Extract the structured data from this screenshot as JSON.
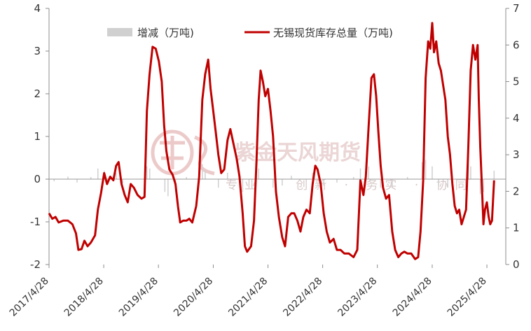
{
  "chart_data": {
    "type": "line",
    "legend": {
      "placement": "top",
      "entries": [
        {
          "key": "change",
          "label": "增减（万吨)",
          "style": "bar",
          "color": "#d0d0d0"
        },
        {
          "key": "inventory",
          "label": "无锡现货库存总量（万吨)",
          "style": "line",
          "color": "#c00000"
        }
      ]
    },
    "x_tick_labels": [
      "2017/4/28",
      "2018/4/28",
      "2019/4/28",
      "2020/4/28",
      "2021/4/28",
      "2022/4/28",
      "2023/4/28",
      "2024/4/28",
      "2025/4/28"
    ],
    "x_range": [
      "2017/4/28",
      "2025/9/1"
    ],
    "y_left": {
      "min": -2,
      "max": 4,
      "ticks": [
        "-2",
        "-1",
        "0",
        "1",
        "2",
        "3",
        "4"
      ],
      "series": "change"
    },
    "y_right": {
      "min": 0,
      "max": 7,
      "ticks": [
        "0",
        "1",
        "2",
        "3",
        "4",
        "5",
        "6",
        "7"
      ],
      "series": "inventory"
    },
    "grid": false,
    "series": [
      {
        "name": "无锡现货库存总量（万吨)",
        "axis": "right",
        "color": "#c00000",
        "points": [
          [
            "2017/4/28",
            1.4
          ],
          [
            "2017/5/20",
            1.25
          ],
          [
            "2017/6/10",
            1.3
          ],
          [
            "2017/7/1",
            1.15
          ],
          [
            "2017/8/1",
            1.2
          ],
          [
            "2017/9/1",
            1.2
          ],
          [
            "2017/10/1",
            1.1
          ],
          [
            "2017/10/25",
            0.85
          ],
          [
            "2017/11/10",
            0.4
          ],
          [
            "2017/12/1",
            0.42
          ],
          [
            "2017/12/20",
            0.65
          ],
          [
            "2018/1/10",
            0.5
          ],
          [
            "2018/2/1",
            0.6
          ],
          [
            "2018/3/1",
            0.8
          ],
          [
            "2018/3/20",
            1.5
          ],
          [
            "2018/4/10",
            1.95
          ],
          [
            "2018/5/1",
            2.5
          ],
          [
            "2018/5/20",
            2.2
          ],
          [
            "2018/6/10",
            2.4
          ],
          [
            "2018/7/1",
            2.3
          ],
          [
            "2018/7/20",
            2.7
          ],
          [
            "2018/8/5",
            2.8
          ],
          [
            "2018/8/25",
            2.2
          ],
          [
            "2018/9/15",
            1.9
          ],
          [
            "2018/10/5",
            1.7
          ],
          [
            "2018/10/25",
            2.2
          ],
          [
            "2018/11/15",
            2.1
          ],
          [
            "2018/12/10",
            1.9
          ],
          [
            "2019/1/5",
            1.8
          ],
          [
            "2019/1/25",
            1.85
          ],
          [
            "2019/2/10",
            4.2
          ],
          [
            "2019/2/28",
            5.2
          ],
          [
            "2019/3/20",
            5.95
          ],
          [
            "2019/4/10",
            5.9
          ],
          [
            "2019/5/1",
            5.55
          ],
          [
            "2019/5/20",
            5.0
          ],
          [
            "2019/6/5",
            3.8
          ],
          [
            "2019/6/20",
            3.1
          ],
          [
            "2019/7/10",
            2.6
          ],
          [
            "2019/8/1",
            2.45
          ],
          [
            "2019/8/20",
            2.2
          ],
          [
            "2019/9/5",
            1.6
          ],
          [
            "2019/9/20",
            1.15
          ],
          [
            "2019/10/10",
            1.2
          ],
          [
            "2019/11/1",
            1.2
          ],
          [
            "2019/11/20",
            1.25
          ],
          [
            "2019/12/10",
            1.15
          ],
          [
            "2020/1/5",
            1.6
          ],
          [
            "2020/1/25",
            2.4
          ],
          [
            "2020/2/15",
            4.5
          ],
          [
            "2020/3/5",
            5.2
          ],
          [
            "2020/3/25",
            5.6
          ],
          [
            "2020/4/10",
            4.8
          ],
          [
            "2020/4/28",
            4.2
          ],
          [
            "2020/5/15",
            3.6
          ],
          [
            "2020/6/1",
            3.0
          ],
          [
            "2020/6/20",
            2.5
          ],
          [
            "2020/7/10",
            2.6
          ],
          [
            "2020/8/1",
            3.4
          ],
          [
            "2020/8/20",
            3.7
          ],
          [
            "2020/9/10",
            3.3
          ],
          [
            "2020/10/1",
            2.9
          ],
          [
            "2020/10/20",
            2.4
          ],
          [
            "2020/11/10",
            1.4
          ],
          [
            "2020/11/25",
            0.5
          ],
          [
            "2020/12/10",
            0.35
          ],
          [
            "2021/1/5",
            0.5
          ],
          [
            "2021/1/25",
            1.2
          ],
          [
            "2021/2/10",
            2.8
          ],
          [
            "2021/2/25",
            4.5
          ],
          [
            "2021/3/10",
            5.3
          ],
          [
            "2021/3/25",
            5.0
          ],
          [
            "2021/4/10",
            4.6
          ],
          [
            "2021/4/28",
            4.8
          ],
          [
            "2021/5/15",
            4.2
          ],
          [
            "2021/6/1",
            3.5
          ],
          [
            "2021/6/20",
            2.0
          ],
          [
            "2021/7/10",
            1.3
          ],
          [
            "2021/8/1",
            0.75
          ],
          [
            "2021/8/20",
            0.5
          ],
          [
            "2021/9/10",
            1.3
          ],
          [
            "2021/10/1",
            1.4
          ],
          [
            "2021/10/20",
            1.4
          ],
          [
            "2021/11/10",
            1.2
          ],
          [
            "2021/12/1",
            0.9
          ],
          [
            "2021/12/20",
            1.3
          ],
          [
            "2022/1/10",
            1.5
          ],
          [
            "2022/2/1",
            1.4
          ],
          [
            "2022/2/20",
            2.2
          ],
          [
            "2022/3/10",
            2.7
          ],
          [
            "2022/3/25",
            2.6
          ],
          [
            "2022/4/15",
            2.2
          ],
          [
            "2022/5/5",
            1.4
          ],
          [
            "2022/5/25",
            0.9
          ],
          [
            "2022/6/15",
            0.6
          ],
          [
            "2022/7/10",
            0.7
          ],
          [
            "2022/8/1",
            0.4
          ],
          [
            "2022/8/25",
            0.4
          ],
          [
            "2022/9/20",
            0.3
          ],
          [
            "2022/10/20",
            0.3
          ],
          [
            "2022/11/20",
            0.2
          ],
          [
            "2022/12/15",
            0.4
          ],
          [
            "2023/1/5",
            2.3
          ],
          [
            "2023/1/25",
            1.9
          ],
          [
            "2023/2/10",
            2.4
          ],
          [
            "2023/3/1",
            3.8
          ],
          [
            "2023/3/20",
            5.1
          ],
          [
            "2023/4/5",
            5.2
          ],
          [
            "2023/4/20",
            4.6
          ],
          [
            "2023/5/5",
            3.6
          ],
          [
            "2023/5/20",
            2.7
          ],
          [
            "2023/6/5",
            2.1
          ],
          [
            "2023/6/25",
            1.8
          ],
          [
            "2023/7/15",
            1.9
          ],
          [
            "2023/8/5",
            0.9
          ],
          [
            "2023/8/25",
            0.4
          ],
          [
            "2023/9/15",
            0.2
          ],
          [
            "2023/10/5",
            0.3
          ],
          [
            "2023/10/25",
            0.35
          ],
          [
            "2023/11/15",
            0.3
          ],
          [
            "2023/12/10",
            0.3
          ],
          [
            "2024/1/5",
            0.15
          ],
          [
            "2024/1/25",
            0.2
          ],
          [
            "2024/2/10",
            0.9
          ],
          [
            "2024/2/28",
            2.3
          ],
          [
            "2024/3/15",
            5.1
          ],
          [
            "2024/4/1",
            6.1
          ],
          [
            "2024/4/15",
            5.9
          ],
          [
            "2024/4/28",
            6.6
          ],
          [
            "2024/5/10",
            5.8
          ],
          [
            "2024/5/25",
            6.1
          ],
          [
            "2024/6/10",
            5.5
          ],
          [
            "2024/6/25",
            5.3
          ],
          [
            "2024/7/10",
            4.9
          ],
          [
            "2024/7/25",
            4.5
          ],
          [
            "2024/8/10",
            3.5
          ],
          [
            "2024/8/25",
            3.0
          ],
          [
            "2024/9/10",
            2.2
          ],
          [
            "2024/9/25",
            1.6
          ],
          [
            "2024/10/10",
            1.4
          ],
          [
            "2024/10/25",
            1.5
          ],
          [
            "2024/11/10",
            1.1
          ],
          [
            "2024/11/25",
            1.3
          ],
          [
            "2024/12/10",
            1.5
          ],
          [
            "2024/12/25",
            3.2
          ],
          [
            "2025/1/10",
            5.3
          ],
          [
            "2025/1/25",
            6.0
          ],
          [
            "2025/2/10",
            5.6
          ],
          [
            "2025/2/25",
            6.0
          ],
          [
            "2025/3/5",
            4.5
          ],
          [
            "2025/3/15",
            3.2
          ],
          [
            "2025/3/25",
            2.2
          ],
          [
            "2025/4/5",
            1.1
          ],
          [
            "2025/4/15",
            1.5
          ],
          [
            "2025/4/28",
            1.7
          ],
          [
            "2025/5/10",
            1.3
          ],
          [
            "2025/5/20",
            1.1
          ],
          [
            "2025/6/1",
            1.2
          ],
          [
            "2025/6/15",
            2.3
          ]
        ]
      },
      {
        "name": "增减（万吨)",
        "axis": "left",
        "color": "#d0d0d0",
        "points": [
          [
            "2017/6/1",
            -0.05
          ],
          [
            "2017/9/1",
            0.06
          ],
          [
            "2017/11/1",
            -0.08
          ],
          [
            "2018/2/1",
            0.05
          ],
          [
            "2018/3/20",
            0.25
          ],
          [
            "2018/5/1",
            0.2
          ],
          [
            "2018/7/20",
            0.15
          ],
          [
            "2018/9/1",
            -0.1
          ],
          [
            "2019/2/10",
            0.3
          ],
          [
            "2019/3/1",
            0.25
          ],
          [
            "2019/6/10",
            -0.3
          ],
          [
            "2019/7/1",
            -0.4
          ],
          [
            "2019/8/20",
            -0.3
          ],
          [
            "2019/11/1",
            0.05
          ],
          [
            "2020/2/15",
            0.35
          ],
          [
            "2020/3/5",
            0.2
          ],
          [
            "2020/6/1",
            -0.2
          ],
          [
            "2020/8/1",
            0.15
          ],
          [
            "2020/11/10",
            -0.3
          ],
          [
            "2021/2/10",
            0.3
          ],
          [
            "2021/2/25",
            0.25
          ],
          [
            "2021/6/1",
            -0.2
          ],
          [
            "2021/8/1",
            -0.15
          ],
          [
            "2021/10/1",
            0.08
          ],
          [
            "2022/2/20",
            0.15
          ],
          [
            "2022/5/5",
            -0.15
          ],
          [
            "2022/8/1",
            -0.08
          ],
          [
            "2022/11/20",
            0.05
          ],
          [
            "2023/1/5",
            0.25
          ],
          [
            "2023/3/1",
            0.3
          ],
          [
            "2023/5/20",
            -0.2
          ],
          [
            "2023/8/5",
            -0.2
          ],
          [
            "2023/11/15",
            0.05
          ],
          [
            "2024/2/20",
            0.4
          ],
          [
            "2024/3/15",
            0.45
          ],
          [
            "2024/4/28",
            0.3
          ],
          [
            "2024/6/10",
            -0.15
          ],
          [
            "2024/8/10",
            -0.2
          ],
          [
            "2024/9/10",
            -0.25
          ],
          [
            "2024/12/25",
            0.35
          ],
          [
            "2025/1/10",
            0.3
          ],
          [
            "2025/3/15",
            -0.35
          ],
          [
            "2025/4/5",
            -0.3
          ],
          [
            "2025/6/15",
            0.2
          ]
        ]
      }
    ],
    "watermark": {
      "brand": "紫金天风期货",
      "tagline": "专业 · 创新 · 务实 · 协同"
    }
  }
}
